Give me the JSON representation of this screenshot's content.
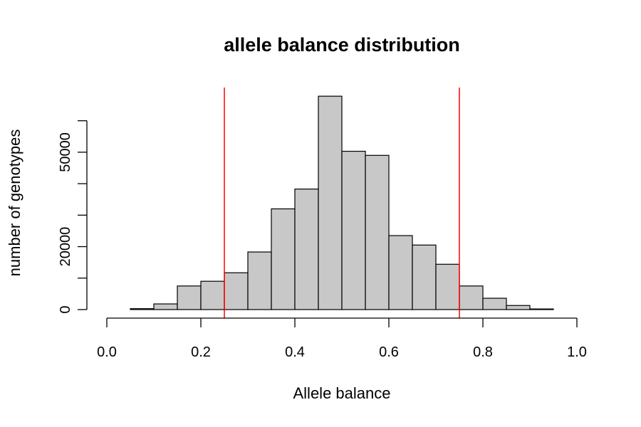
{
  "chart_data": {
    "type": "bar",
    "title": "allele balance distribution",
    "xlabel": "Allele balance",
    "ylabel": "number of genotypes",
    "xlim": [
      0.0,
      1.0
    ],
    "ylim": [
      0,
      60000
    ],
    "x_ticks": [
      0.0,
      0.2,
      0.4,
      0.6,
      0.8,
      1.0
    ],
    "x_tick_labels": [
      "0.0",
      "0.2",
      "0.4",
      "0.6",
      "0.8",
      "1.0"
    ],
    "y_ticks": [
      0,
      20000,
      50000
    ],
    "y_tick_labels": [
      "0",
      "20000",
      "50000"
    ],
    "y_minor_ticks": [
      10000,
      30000,
      40000,
      60000
    ],
    "bin_width": 0.05,
    "bin_starts": [
      0.05,
      0.1,
      0.15,
      0.2,
      0.25,
      0.3,
      0.35,
      0.4,
      0.45,
      0.5,
      0.55,
      0.6,
      0.65,
      0.7,
      0.75,
      0.8,
      0.85,
      0.9
    ],
    "values": [
      300,
      1800,
      7500,
      9000,
      11700,
      18300,
      32000,
      38300,
      67800,
      50300,
      49000,
      23500,
      20500,
      14400,
      7500,
      3600,
      1300,
      200
    ],
    "bar_fill": "#c8c8c8",
    "reference_lines": [
      0.25,
      0.75
    ],
    "reference_line_color": "#ff0000",
    "grid": false,
    "legend": "none"
  }
}
